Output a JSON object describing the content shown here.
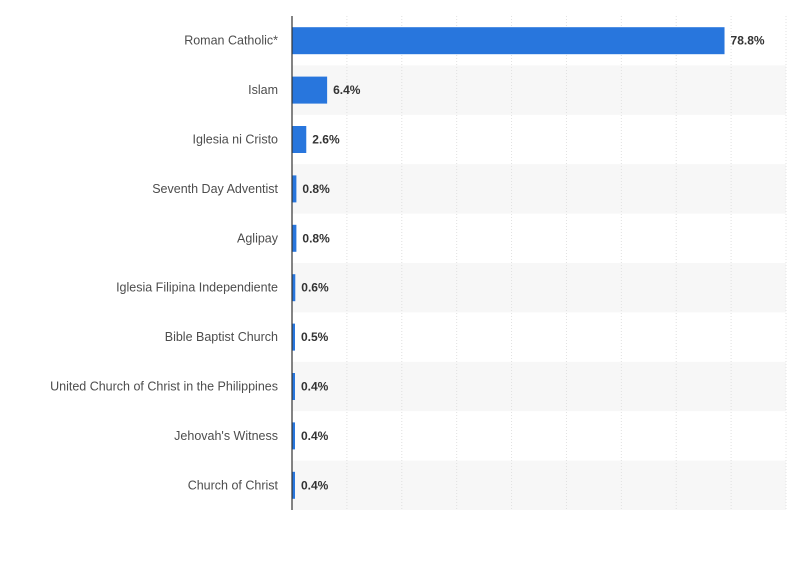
{
  "chart_data": {
    "type": "bar",
    "orientation": "horizontal",
    "categories": [
      "Roman Catholic*",
      "Islam",
      "Iglesia ni Cristo",
      "Seventh Day Adventist",
      "Aglipay",
      "Iglesia Filipina Independiente",
      "Bible Baptist Church",
      "United Church of Christ in the Philippines",
      "Jehovah's Witness",
      "Church of Christ"
    ],
    "values": [
      78.8,
      6.4,
      2.6,
      0.8,
      0.8,
      0.6,
      0.5,
      0.4,
      0.4,
      0.4
    ],
    "value_labels": [
      "78.8%",
      "6.4%",
      "2.6%",
      "0.8%",
      "0.8%",
      "0.6%",
      "0.5%",
      "0.4%",
      "0.4%",
      "0.4%"
    ],
    "title": "",
    "xlabel": "",
    "ylabel": "",
    "xlim": [
      0,
      90
    ],
    "grid": true,
    "legend": "none",
    "colors": {
      "bar": "#2876dd",
      "stripe": "#f7f7f7",
      "grid": "#e0e0e0",
      "axis": "#333333"
    }
  }
}
